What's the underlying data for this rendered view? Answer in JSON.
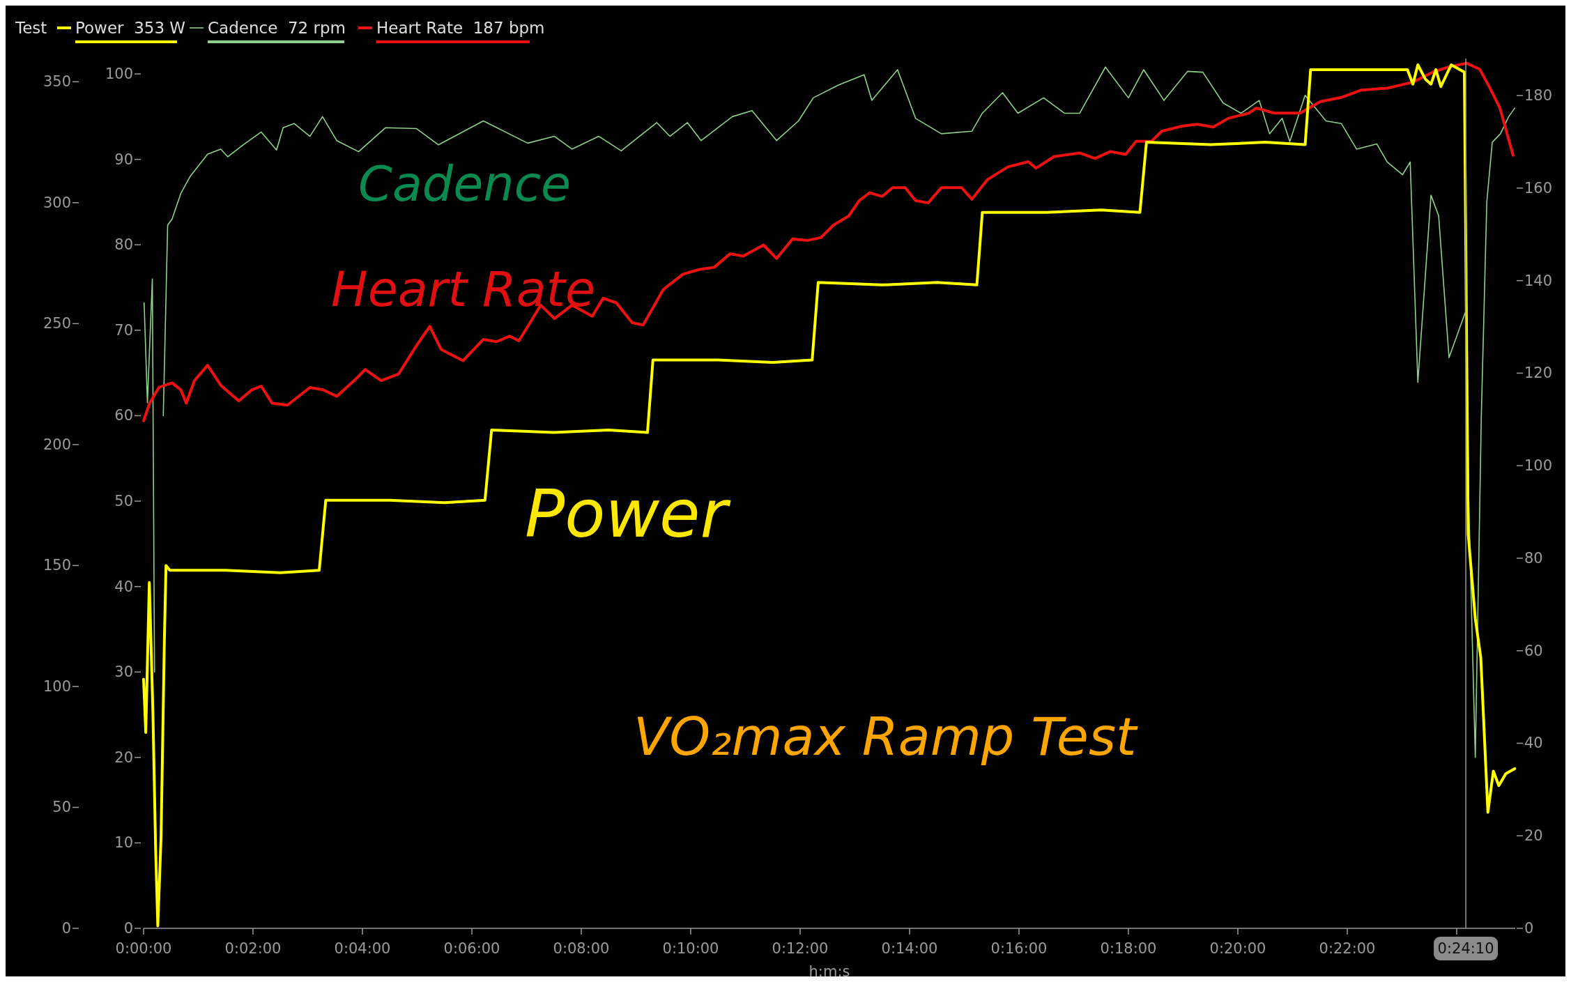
{
  "chart_data": {
    "type": "line",
    "title": "Test",
    "xlabel": "h:m:s",
    "legend": "top left",
    "xlim": [
      0,
      25.07
    ],
    "xticks": [
      {
        "value": 0,
        "label": "0:00:00"
      },
      {
        "value": 2,
        "label": "0:02:00"
      },
      {
        "value": 4,
        "label": "0:04:00"
      },
      {
        "value": 6,
        "label": "0:06:00"
      },
      {
        "value": 8,
        "label": "0:08:00"
      },
      {
        "value": 10,
        "label": "0:10:00"
      },
      {
        "value": 12,
        "label": "0:12:00"
      },
      {
        "value": 14,
        "label": "0:14:00"
      },
      {
        "value": 16,
        "label": "0:16:00"
      },
      {
        "value": 18,
        "label": "0:18:00"
      },
      {
        "value": 20,
        "label": "0:20:00"
      },
      {
        "value": 22,
        "label": "0:22:00"
      },
      {
        "value": 24,
        "label": null
      }
    ],
    "ylim": [
      0,
      359.6
    ],
    "yticks": [
      0,
      50,
      100,
      150,
      200,
      250,
      300,
      350
    ],
    "y3lim": [
      0,
      101.8
    ],
    "y3ticks": [
      0,
      10,
      20,
      30,
      40,
      50,
      60,
      70,
      80,
      90,
      100
    ],
    "y2lim": [
      0,
      188
    ],
    "y2ticks": [
      0,
      20,
      40,
      60,
      80,
      100,
      120,
      140,
      160,
      180
    ],
    "ref_lines": [
      {
        "axis": "x",
        "value": 24.1667,
        "label": "0:24:10",
        "color": "#9a9a9a"
      }
    ],
    "annotations": [
      "Cadence",
      "Heart Rate",
      "Power",
      "VO₂max Ramp Test"
    ],
    "series": [
      {
        "name": "Power  353 W",
        "color": "#ffff00",
        "axis": "y",
        "x": [
          0,
          0.04,
          0.105,
          0.17,
          0.22,
          0.26,
          0.32,
          0.38,
          0.41,
          0.48,
          1.5,
          2.5,
          3.21,
          3.33,
          4.5,
          5.5,
          6.24,
          6.36,
          7.5,
          8.5,
          9.21,
          9.31,
          10.5,
          11.5,
          12.22,
          12.33,
          13.5,
          14.5,
          15.23,
          15.33,
          16.5,
          17.5,
          18.21,
          18.33,
          19.5,
          20.5,
          21.23,
          21.33,
          22.2,
          23.1,
          23.2,
          23.29,
          23.43,
          23.53,
          23.62,
          23.71,
          23.9,
          24.14,
          24.21,
          24.34,
          24.44,
          24.57,
          24.67,
          24.77,
          24.9,
          25.06
        ],
        "values": [
          103,
          81,
          143,
          90,
          33,
          1,
          38,
          119,
          150,
          148,
          148,
          147,
          148,
          177,
          177,
          176,
          177,
          206,
          205,
          206,
          205,
          235,
          235,
          234,
          235,
          267,
          266,
          267,
          266,
          296,
          296,
          297,
          296,
          325,
          324,
          325,
          324,
          355,
          355,
          355,
          349,
          357,
          351,
          349,
          355,
          348,
          357,
          354,
          163,
          128,
          112,
          48,
          65,
          59,
          64,
          66
        ]
      },
      {
        "name": "Cadence  72 rpm",
        "color": "#8fd18a",
        "axis": "y3",
        "x": [
          0.01,
          0.07,
          0.16,
          0.2,
          0.24,
          0.3,
          0.36,
          0.44,
          0.52,
          0.68,
          0.85,
          1.17,
          1.41,
          1.54,
          1.82,
          2.15,
          2.43,
          2.55,
          2.75,
          3.04,
          3.27,
          3.53,
          3.93,
          4.42,
          4.99,
          5.39,
          6.21,
          7.02,
          7.51,
          7.83,
          8.32,
          8.73,
          9.38,
          9.62,
          9.94,
          10.19,
          10.76,
          11.12,
          11.57,
          11.97,
          12.24,
          12.7,
          13.17,
          13.31,
          13.78,
          14.11,
          14.58,
          15.14,
          15.33,
          15.7,
          15.98,
          16.45,
          16.83,
          17.11,
          17.58,
          18.0,
          18.28,
          18.65,
          19.08,
          19.36,
          19.73,
          20.06,
          20.39,
          20.58,
          20.81,
          20.95,
          21.23,
          21.61,
          21.89,
          22.17,
          22.54,
          22.73,
          23.01,
          23.15,
          23.29,
          23.53,
          23.67,
          23.86,
          24.18,
          24.22,
          24.34,
          24.45,
          24.55,
          24.65,
          24.8,
          24.95,
          25.06
        ],
        "values": [
          73.2,
          61.5,
          76,
          30,
          null,
          null,
          60,
          82.3,
          83,
          86,
          88,
          90.6,
          91.2,
          90.3,
          91.7,
          93.2,
          91.1,
          93.7,
          94.2,
          92.7,
          95,
          92.2,
          90.9,
          93.7,
          93.6,
          91.7,
          94.5,
          91.9,
          92.7,
          91.2,
          92.7,
          91,
          94.3,
          92.7,
          94.3,
          92.2,
          95,
          95.7,
          92.2,
          94.5,
          97.2,
          98.7,
          99.9,
          96.9,
          100.5,
          94.8,
          93,
          93.3,
          95.4,
          97.8,
          95.4,
          97.2,
          95.4,
          95.4,
          100.8,
          97.2,
          100.5,
          96.9,
          100.3,
          100.2,
          96.6,
          95.4,
          96.9,
          93,
          94.8,
          92.1,
          97.5,
          94.5,
          94.2,
          91.2,
          91.8,
          89.7,
          88.2,
          89.7,
          63.9,
          85.8,
          83.4,
          66.8,
          72.5,
          50,
          20,
          60,
          85,
          92,
          93,
          95,
          96
        ]
      },
      {
        "name": "Heart Rate  187 bpm",
        "color": "#ee1111",
        "axis": "y2",
        "x": [
          0,
          0.11,
          0.28,
          0.52,
          0.68,
          0.78,
          0.93,
          1.17,
          1.41,
          1.74,
          1.98,
          2.15,
          2.35,
          2.63,
          3.04,
          3.28,
          3.53,
          3.85,
          4.05,
          4.34,
          4.66,
          4.99,
          5.23,
          5.44,
          5.84,
          6.21,
          6.45,
          6.69,
          6.86,
          7.26,
          7.51,
          7.83,
          8.2,
          8.4,
          8.64,
          8.93,
          9.13,
          9.5,
          9.86,
          10.15,
          10.43,
          10.72,
          10.96,
          11.33,
          11.57,
          11.86,
          12.14,
          12.38,
          12.61,
          12.89,
          13.08,
          13.27,
          13.5,
          13.69,
          13.92,
          14.11,
          14.34,
          14.58,
          14.95,
          15.14,
          15.42,
          15.8,
          16.17,
          16.31,
          16.64,
          17.11,
          17.39,
          17.67,
          17.95,
          18.14,
          18.42,
          18.61,
          18.98,
          19.26,
          19.55,
          19.83,
          20.2,
          20.34,
          20.67,
          21.14,
          21.51,
          21.89,
          22.26,
          22.73,
          23.2,
          23.57,
          23.86,
          24.18,
          24.42,
          24.6,
          24.79,
          25.03
        ],
        "values": [
          109.7,
          113.5,
          116.9,
          117.9,
          116.4,
          113.5,
          118.4,
          121.7,
          117.4,
          114,
          116.4,
          117.2,
          113.5,
          113.1,
          116.9,
          116.4,
          115,
          118.4,
          120.8,
          118.4,
          119.8,
          126,
          130.1,
          125.1,
          122.7,
          127.3,
          126.8,
          128,
          127,
          134.7,
          131.8,
          134.7,
          132.3,
          136.2,
          135.2,
          130.9,
          130.4,
          138.1,
          141.4,
          142.4,
          142.9,
          145.8,
          145.3,
          147.7,
          144.8,
          149,
          148.7,
          149.3,
          152,
          154,
          157.3,
          159,
          158.2,
          160.1,
          160.1,
          157.3,
          156.8,
          160.1,
          160.1,
          157.6,
          161.8,
          164.6,
          165.7,
          164.3,
          166.8,
          167.6,
          166.4,
          167.9,
          167.3,
          170.1,
          170.1,
          172.3,
          173.4,
          173.8,
          173.2,
          175.1,
          176.2,
          177.3,
          176.2,
          176.2,
          178.7,
          179.6,
          181.2,
          181.6,
          182.9,
          185.1,
          186.2,
          187,
          185.7,
          181.8,
          177.3,
          167.1
        ]
      }
    ]
  }
}
